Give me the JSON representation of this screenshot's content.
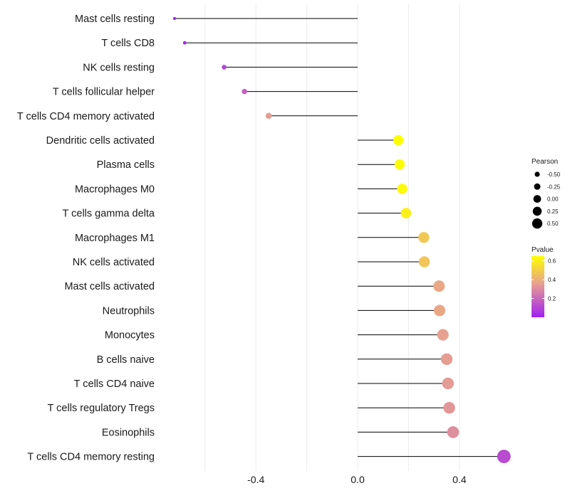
{
  "chart_data": {
    "type": "lollipop",
    "xlabel": "",
    "ylabel": "",
    "xlim": [
      -0.72,
      0.6
    ],
    "x_ticks": [
      -0.4,
      0.0,
      0.4
    ],
    "x_tick_labels": [
      "-0.4",
      "0.0",
      "0.4"
    ],
    "gridlines": [
      -0.6,
      -0.4,
      -0.2,
      0.0,
      0.2,
      0.4
    ],
    "points": [
      {
        "label": "Mast cells resting",
        "pearson": -0.72,
        "pvalue": 0.01
      },
      {
        "label": "T cells CD8",
        "pearson": -0.68,
        "pvalue": 0.02
      },
      {
        "label": "NK cells resting",
        "pearson": -0.525,
        "pvalue": 0.1
      },
      {
        "label": "T cells follicular helper",
        "pearson": -0.445,
        "pvalue": 0.18
      },
      {
        "label": "T cells CD4 memory activated",
        "pearson": -0.35,
        "pvalue": 0.35
      },
      {
        "label": "Dendritic cells activated",
        "pearson": 0.16,
        "pvalue": 0.65
      },
      {
        "label": "Plasma cells",
        "pearson": 0.165,
        "pvalue": 0.64
      },
      {
        "label": "Macrophages M0",
        "pearson": 0.175,
        "pvalue": 0.63
      },
      {
        "label": "T cells gamma delta",
        "pearson": 0.19,
        "pvalue": 0.6
      },
      {
        "label": "Macrophages M1",
        "pearson": 0.26,
        "pvalue": 0.48
      },
      {
        "label": "NK cells activated",
        "pearson": 0.262,
        "pvalue": 0.47
      },
      {
        "label": "Mast cells activated",
        "pearson": 0.32,
        "pvalue": 0.38
      },
      {
        "label": "Neutrophils",
        "pearson": 0.322,
        "pvalue": 0.38
      },
      {
        "label": "Monocytes",
        "pearson": 0.335,
        "pvalue": 0.36
      },
      {
        "label": "B cells naive",
        "pearson": 0.35,
        "pvalue": 0.35
      },
      {
        "label": "T cells CD4 naive",
        "pearson": 0.355,
        "pvalue": 0.34
      },
      {
        "label": "T cells regulatory  Tregs ",
        "pearson": 0.36,
        "pvalue": 0.33
      },
      {
        "label": "Eosinophils",
        "pearson": 0.375,
        "pvalue": 0.31
      },
      {
        "label": "T cells CD4 memory resting",
        "pearson": 0.575,
        "pvalue": 0.12
      }
    ],
    "size_legend": {
      "title": "Pearson",
      "values": [
        -0.5,
        -0.25,
        0.0,
        0.25,
        0.5
      ],
      "labels": [
        "-0.50",
        "-0.25",
        "0.00",
        "0.25",
        "0.50"
      ]
    },
    "color_legend": {
      "title": "Pvalue",
      "range": [
        0.0,
        0.65
      ],
      "ticks": [
        0.2,
        0.4,
        0.6
      ],
      "tick_labels": [
        "0.2",
        "0.4",
        "0.6"
      ],
      "color_low": "#a020f0",
      "color_mid": "#e8a090",
      "color_high": "#ffff00"
    }
  }
}
